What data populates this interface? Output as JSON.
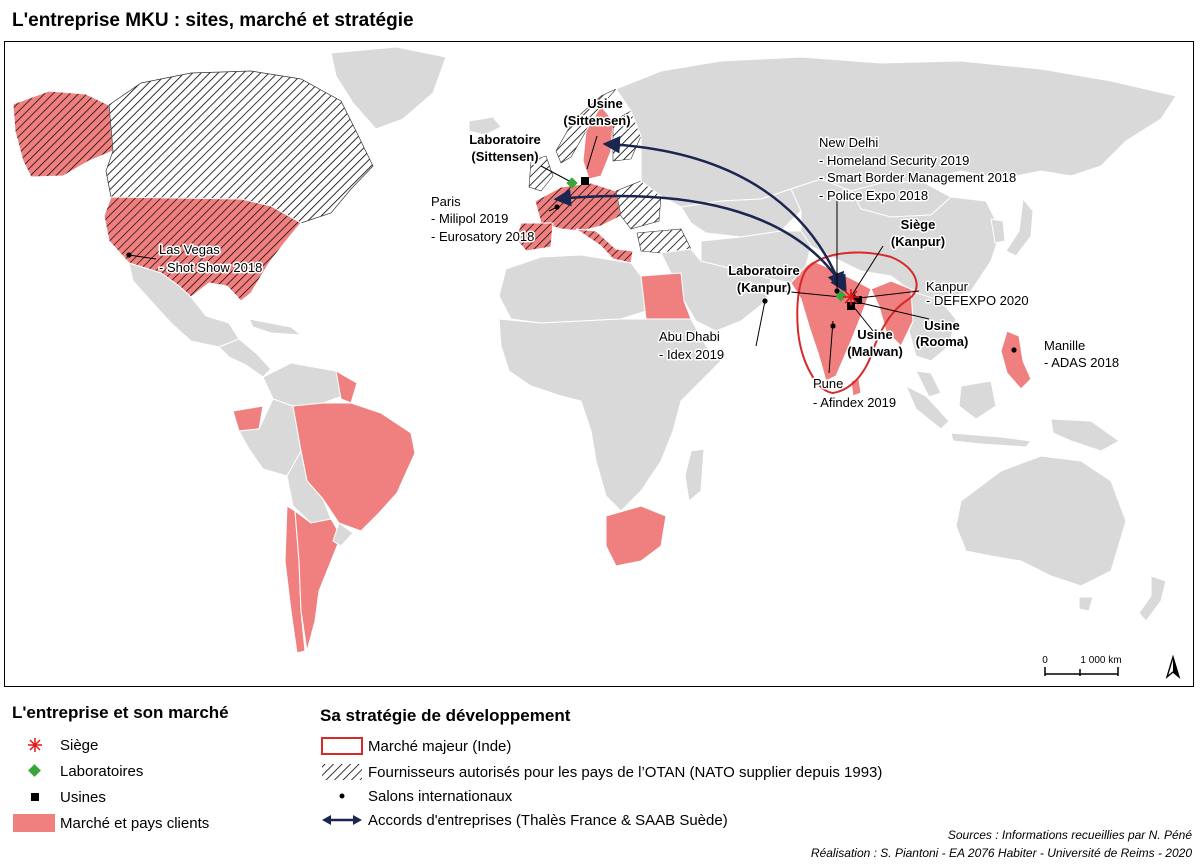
{
  "title": "L'entreprise MKU : sites, marché et stratégie",
  "colors": {
    "land": "#d9d9d9",
    "border": "#ffffff",
    "market": "#f08080",
    "major_market_outline": "#d62a2a",
    "arrow": "#1a2550",
    "lab": "#3aa53a",
    "hq": "#e01818"
  },
  "map": {
    "sites": [
      {
        "kind": "usine",
        "title": "Usine",
        "name": "(Sittensen)"
      },
      {
        "kind": "laboratoire",
        "title": "Laboratoire",
        "name": "(Sittensen)"
      },
      {
        "kind": "siege",
        "title": "Siège",
        "name": "(Kanpur)"
      },
      {
        "kind": "laboratoire",
        "title": "Laboratoire",
        "name": "(Kanpur)"
      },
      {
        "kind": "usine",
        "title": "Usine",
        "name": "(Malwan)"
      },
      {
        "kind": "usine",
        "title": "Usine",
        "name": "(Rooma)"
      }
    ],
    "salons": [
      {
        "city": "Las Vegas",
        "events": [
          "- Shot Show 2018"
        ]
      },
      {
        "city": "Paris",
        "events": [
          "- Milipol 2019",
          "- Eurosatory 2018"
        ]
      },
      {
        "city": "New Delhi",
        "events": [
          "- Homeland Security 2019",
          "- Smart Border Management 2018",
          "- Police Expo 2018"
        ]
      },
      {
        "city": "Kanpur",
        "events": [
          "- DEFEXPO 2020"
        ]
      },
      {
        "city": "Abu Dhabi",
        "events": [
          "- Idex 2019"
        ]
      },
      {
        "city": "Pune",
        "events": [
          "- Afindex 2019"
        ]
      },
      {
        "city": "Manille",
        "events": [
          "- ADAS 2018"
        ]
      }
    ],
    "scale": {
      "start": "0",
      "end": "1 000 km"
    },
    "north_arrow": "north-arrow-icon"
  },
  "legend_left": {
    "heading": "L'entreprise et son marché",
    "items": [
      {
        "label": "Siège",
        "icon": "siege-icon"
      },
      {
        "label": "Laboratoires",
        "icon": "laboratoire-icon"
      },
      {
        "label": "Usines",
        "icon": "usine-icon"
      },
      {
        "label": "Marché et pays clients",
        "icon": "market-swatch-icon"
      }
    ]
  },
  "legend_right": {
    "heading": "Sa stratégie de développement",
    "items": [
      {
        "label": "Marché majeur (Inde)",
        "icon": "outline-box-icon"
      },
      {
        "label": "Fournisseurs autorisés pour les pays de l’OTAN (NATO supplier depuis 1993)",
        "icon": "hatch-swatch-icon"
      },
      {
        "label": "Salons internationaux",
        "icon": "dot-icon"
      },
      {
        "label": "Accords d'entreprises (Thalès France & SAAB Suède)",
        "icon": "double-arrow-icon"
      }
    ]
  },
  "credits": {
    "sources": "Sources :  Informations recueillies par N. Péné",
    "realisation": "Réalisation : S. Piantoni - EA 2076 Habiter - Université de Reims - 2020"
  }
}
